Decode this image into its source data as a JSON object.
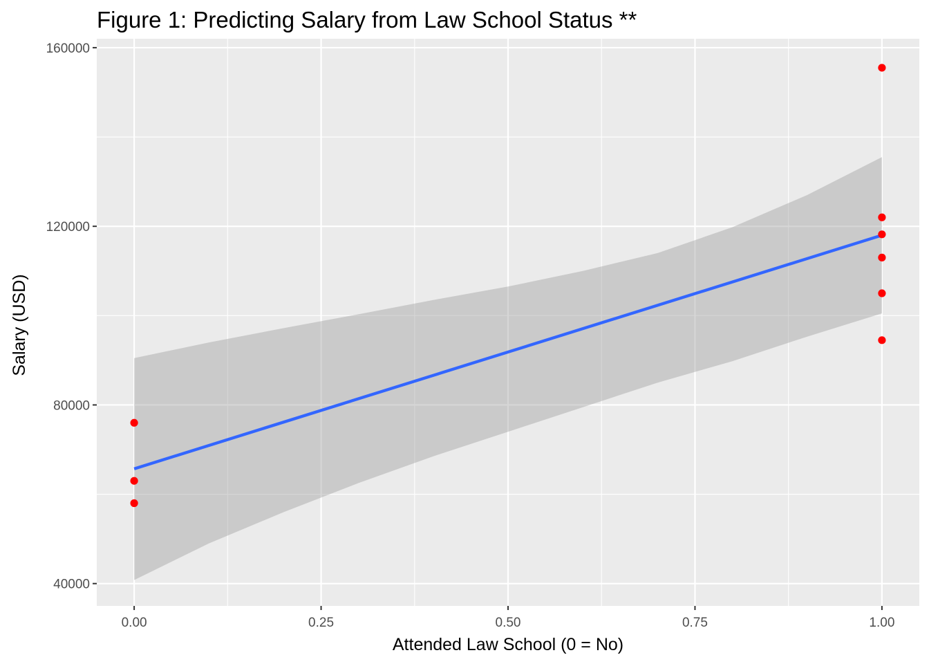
{
  "chart_data": {
    "type": "scatter",
    "title": "Figure 1: Predicting Salary from Law School Status **",
    "xlabel": "Attended Law School (0 = No)",
    "ylabel": "Salary (USD)",
    "xlim": [
      -0.05,
      1.05
    ],
    "ylim": [
      35000,
      162000
    ],
    "x_ticks": [
      0,
      0.25,
      0.5,
      0.75,
      1
    ],
    "x_tick_labels": [
      "0.00",
      "0.25",
      "0.50",
      "0.75",
      "1.00"
    ],
    "y_ticks": [
      40000,
      80000,
      120000,
      160000
    ],
    "y_tick_labels": [
      "40000",
      "80000",
      "120000",
      "160000"
    ],
    "grid": true,
    "points": [
      {
        "x": 0,
        "y": 76000
      },
      {
        "x": 0,
        "y": 63000
      },
      {
        "x": 0,
        "y": 58000
      },
      {
        "x": 1,
        "y": 155500
      },
      {
        "x": 1,
        "y": 122000
      },
      {
        "x": 1,
        "y": 118200
      },
      {
        "x": 1,
        "y": 113000
      },
      {
        "x": 1,
        "y": 105000
      },
      {
        "x": 1,
        "y": 94500
      }
    ],
    "fit_line": {
      "x": [
        0,
        1
      ],
      "y": [
        65700,
        118000
      ]
    },
    "confidence_band": {
      "x": [
        0,
        0.1,
        0.2,
        0.3,
        0.4,
        0.5,
        0.6,
        0.7,
        0.8,
        0.9,
        1.0
      ],
      "upper": [
        90500,
        94000,
        97200,
        100300,
        103500,
        106500,
        110000,
        114000,
        119800,
        127000,
        135500
      ],
      "lower": [
        40800,
        49000,
        56000,
        62500,
        68500,
        74000,
        79500,
        85000,
        89800,
        95300,
        100500
      ]
    },
    "colors": {
      "points": "#ff0000",
      "line": "#3366ff",
      "band": "#999999",
      "panel": "#ebebeb",
      "grid": "#ffffff"
    }
  }
}
